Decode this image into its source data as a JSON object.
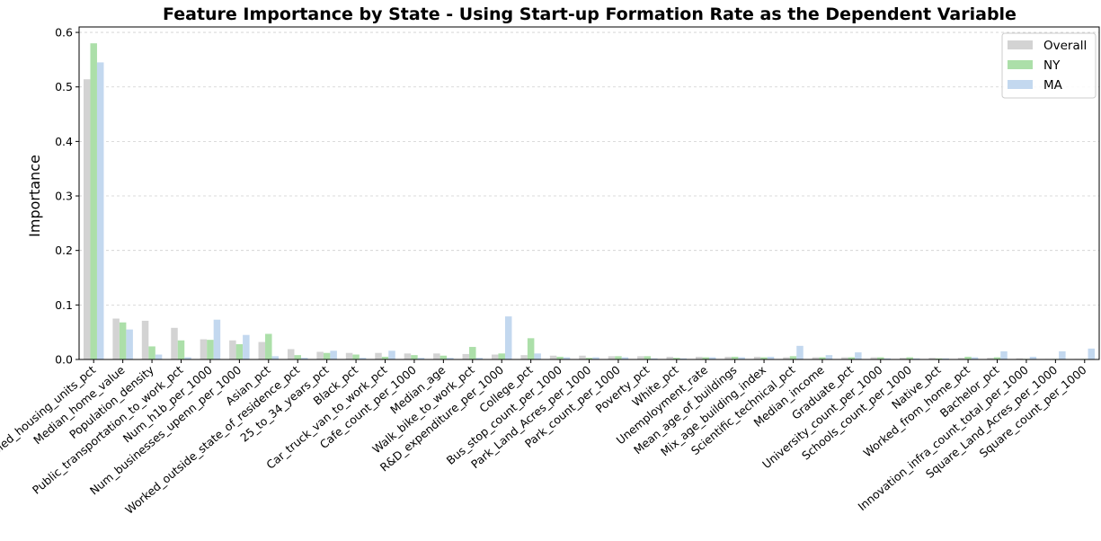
{
  "chart_data": {
    "type": "bar",
    "title": "Feature Importance by State - Using Start-up Formation Rate as the Dependent Variable",
    "xlabel": "",
    "ylabel": "Importance",
    "ylim": [
      0,
      0.61
    ],
    "yticks": [
      0.0,
      0.1,
      0.2,
      0.3,
      0.4,
      0.5,
      0.6
    ],
    "ytick_labels": [
      "0.0",
      "0.1",
      "0.2",
      "0.3",
      "0.4",
      "0.5",
      "0.6"
    ],
    "grid": "horizontal dashed",
    "legend_position": "top-right",
    "categories": [
      "Occupied_housing_units_pct",
      "Median_home_value",
      "Population_density",
      "Public_transportation_to_work_pct",
      "Num_h1b_per_1000",
      "Num_businesses_upenn_per_1000",
      "Asian_pct",
      "Worked_outside_state_of_residence_pct",
      "25_to_34_years_pct",
      "Black_pct",
      "Car_truck_van_to_work_pct",
      "Cafe_count_per_1000",
      "Median_age",
      "Walk_bike_to_work_pct",
      "R&D_expenditure_per_1000",
      "College_pct",
      "Bus_stop_count_per_1000",
      "Park_Land_Acres_per_1000",
      "Park_count_per_1000",
      "Poverty_pct",
      "White_pct",
      "Unemployment_rate",
      "Mean_age_of_buildings",
      "Mix_age_building_index",
      "Scientific_technical_pct",
      "Median_income",
      "Graduate_pct",
      "University_count_per_1000",
      "Schools_count_per_1000",
      "Native_pct",
      "Worked_from_home_pct",
      "Bachelor_pct",
      "Innovation_infra_count_total_per_1000",
      "Square_Land_Acres_per_1000",
      "Square_count_per_1000"
    ],
    "series": [
      {
        "name": "Overall",
        "color": "#d3d3d3",
        "values": [
          0.514,
          0.075,
          0.071,
          0.058,
          0.037,
          0.035,
          0.032,
          0.019,
          0.014,
          0.012,
          0.012,
          0.011,
          0.011,
          0.01,
          0.009,
          0.008,
          0.007,
          0.007,
          0.006,
          0.006,
          0.005,
          0.005,
          0.005,
          0.005,
          0.004,
          0.004,
          0.004,
          0.004,
          0.003,
          0.003,
          0.003,
          0.003,
          0.002,
          0.001,
          0.001
        ]
      },
      {
        "name": "NY",
        "color": "#acdfa9",
        "values": [
          0.58,
          0.068,
          0.024,
          0.035,
          0.036,
          0.028,
          0.047,
          0.008,
          0.012,
          0.009,
          0.005,
          0.008,
          0.007,
          0.023,
          0.011,
          0.039,
          0.005,
          0.003,
          0.006,
          0.006,
          0.003,
          0.004,
          0.005,
          0.004,
          0.006,
          0.004,
          0.004,
          0.004,
          0.004,
          0.002,
          0.005,
          0.004,
          0.001,
          0.001,
          0.001
        ]
      },
      {
        "name": "MA",
        "color": "#c3d8ef",
        "values": [
          0.545,
          0.055,
          0.009,
          0.004,
          0.073,
          0.045,
          0.006,
          0.003,
          0.016,
          0.003,
          0.016,
          0.003,
          0.003,
          0.003,
          0.079,
          0.011,
          0.004,
          0.004,
          0.004,
          0.002,
          0.002,
          0.004,
          0.004,
          0.005,
          0.025,
          0.008,
          0.013,
          0.002,
          0.002,
          0.002,
          0.004,
          0.015,
          0.005,
          0.015,
          0.02
        ]
      }
    ]
  }
}
